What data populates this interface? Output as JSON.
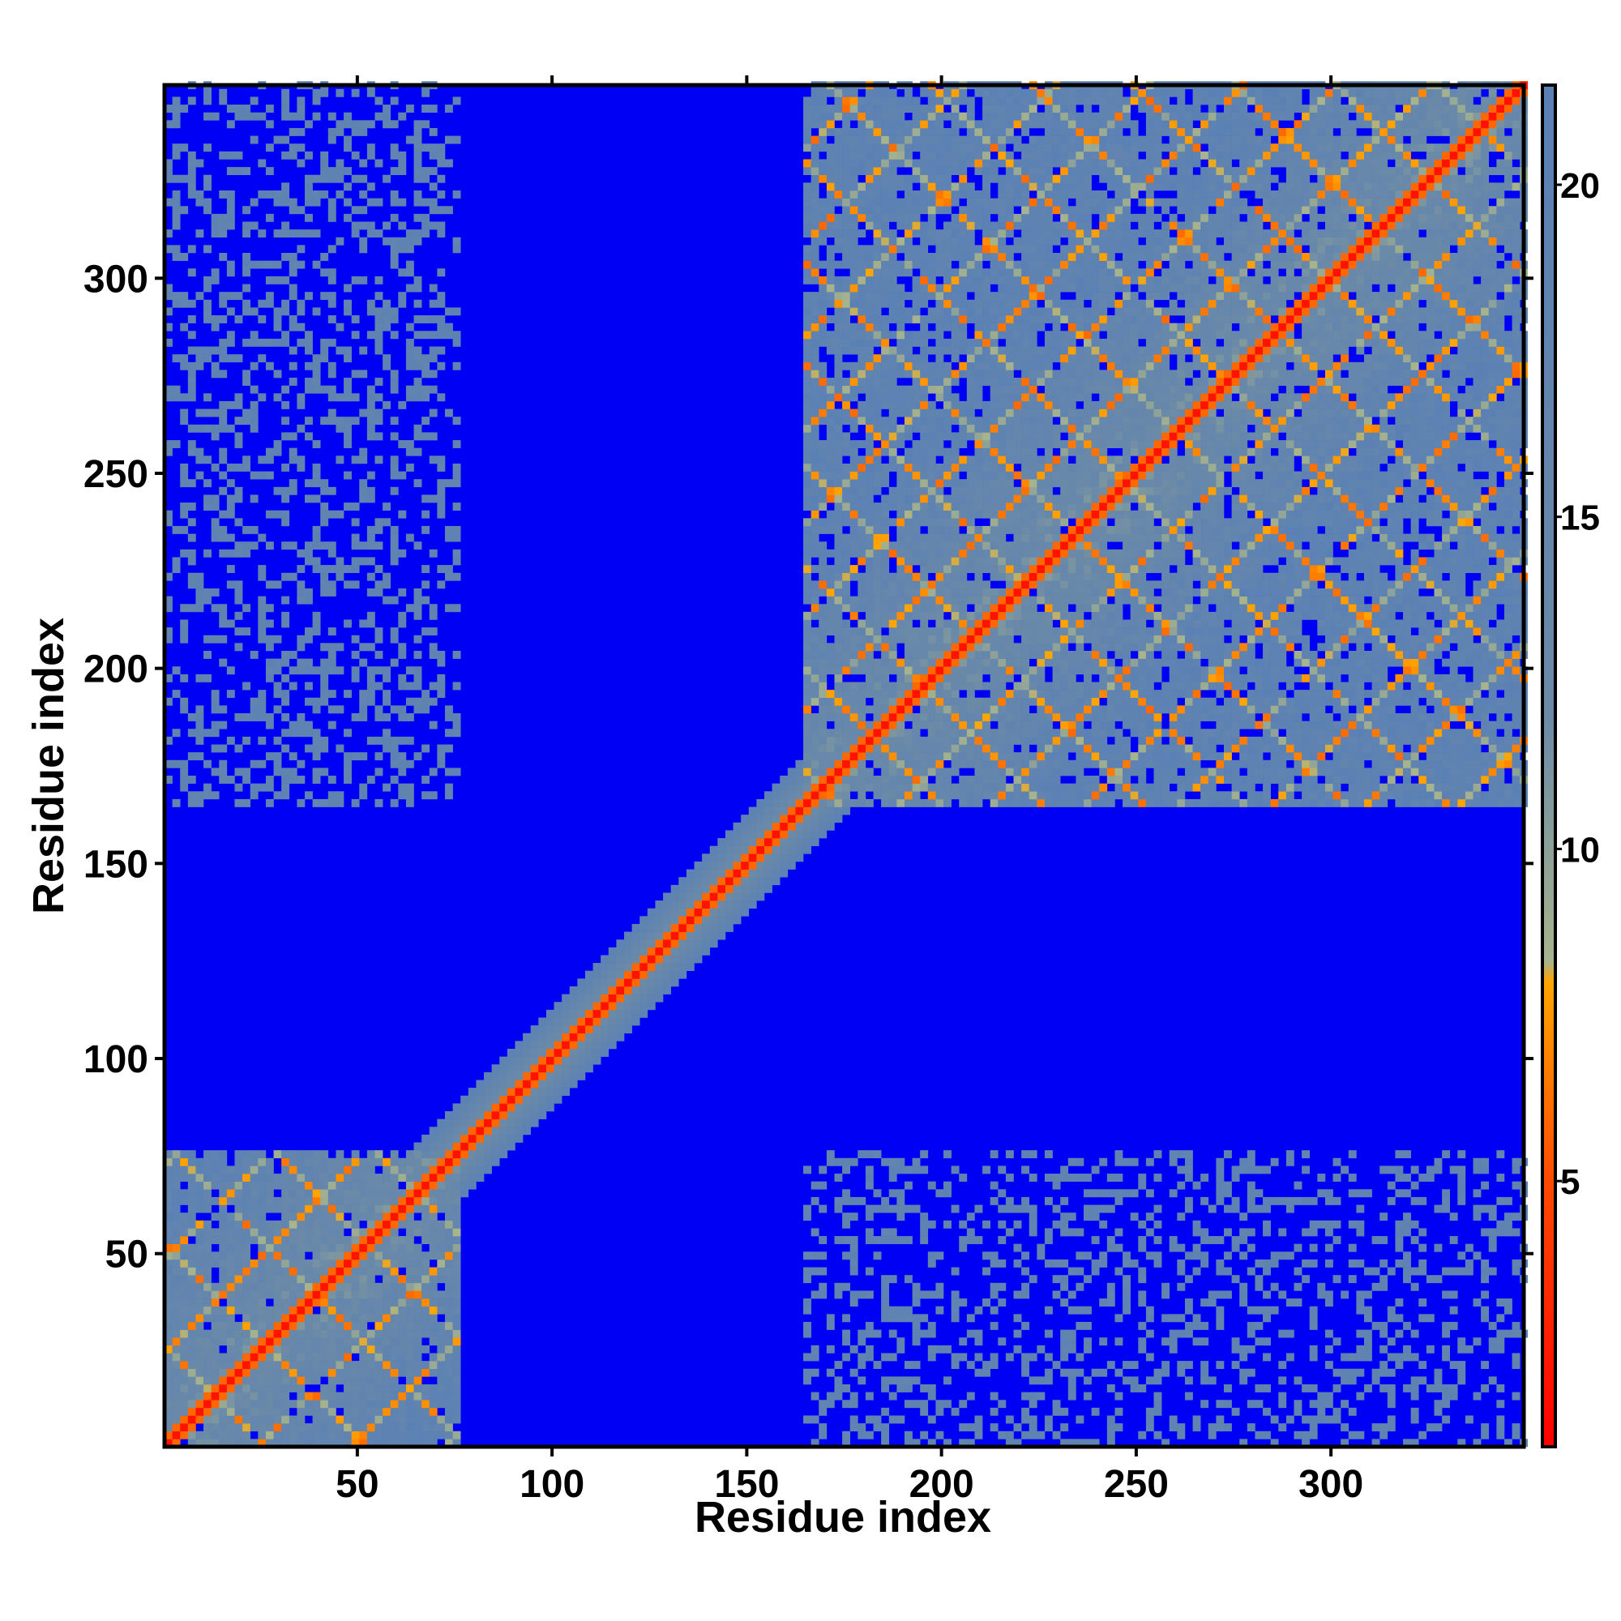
{
  "chart_data": {
    "type": "heatmap",
    "title": "",
    "xlabel": "Residue index",
    "ylabel": "Residue index",
    "xlim": [
      1,
      349
    ],
    "ylim": [
      1,
      349
    ],
    "x_ticks": [
      50,
      100,
      150,
      200,
      250,
      300
    ],
    "y_ticks": [
      50,
      100,
      150,
      200,
      250,
      300
    ],
    "colorbar": {
      "range": [
        1,
        21.5
      ],
      "ticks": [
        5,
        10,
        15,
        20
      ],
      "colors": [
        {
          "stop": 1,
          "color": "#ff0000"
        },
        {
          "stop": 5,
          "color": "#ff4a00"
        },
        {
          "stop": 8,
          "color": "#ffa500"
        },
        {
          "stop": 8.3,
          "color": "#a8b48c"
        },
        {
          "stop": 12,
          "color": "#6b8aa8"
        },
        {
          "stop": 21.5,
          "color": "#5a80b5"
        }
      ],
      "saturation_color": "#0000f5"
    },
    "cutoff_value": 21,
    "domains": [
      {
        "name": "",
        "start": 1,
        "end": 76
      },
      {
        "name": "",
        "start": 165,
        "end": 349
      }
    ],
    "inter_domain_contact_pairs": [
      {
        "a": [
          1,
          76
        ],
        "b": [
          165,
          349
        ],
        "density": 0.32
      }
    ]
  }
}
